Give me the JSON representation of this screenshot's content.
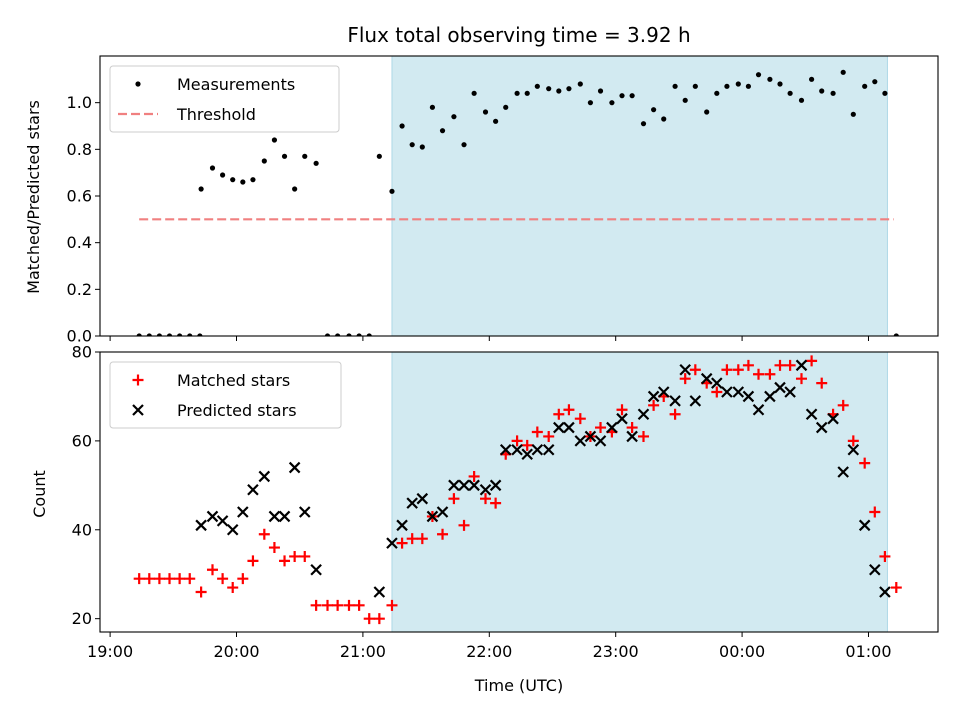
{
  "figure": {
    "title": "Flux total observing time = 3.92 h",
    "xlabel": "Time (UTC)",
    "xticks": [
      "19:00",
      "20:00",
      "21:00",
      "22:00",
      "23:00",
      "00:00",
      "01:00"
    ]
  },
  "colors": {
    "shade": "#add8e6",
    "measurements": "#000000",
    "threshold": "#f08080",
    "matched": "#ff0000",
    "predicted": "#000000"
  },
  "chart_data": [
    {
      "type": "scatter",
      "ylabel": "Matched/Predicted stars",
      "xunit": "hours since 19:00 UTC",
      "xlim": [
        -0.08,
        6.55
      ],
      "ylim": [
        0,
        1.2
      ],
      "yticks": [
        "0.0",
        "0.2",
        "0.4",
        "0.6",
        "0.8",
        "1.0"
      ],
      "shaded_region": [
        2.23,
        6.15
      ],
      "legend": {
        "position": "top-left",
        "entries": [
          "Measurements",
          "Threshold"
        ]
      },
      "threshold": {
        "name": "Threshold",
        "y": 0.5,
        "x_range": [
          0.23,
          6.2
        ]
      },
      "series": [
        {
          "name": "Measurements",
          "x": [
            0.23,
            0.31,
            0.39,
            0.47,
            0.55,
            0.63,
            0.71,
            0.72,
            0.81,
            0.89,
            0.97,
            1.05,
            1.13,
            1.22,
            1.3,
            1.38,
            1.46,
            1.54,
            1.63,
            1.72,
            1.8,
            1.89,
            1.97,
            2.05,
            2.13,
            2.23,
            2.31,
            2.39,
            2.47,
            2.55,
            2.63,
            2.72,
            2.8,
            2.88,
            2.97,
            3.05,
            3.13,
            3.22,
            3.3,
            3.38,
            3.47,
            3.55,
            3.63,
            3.72,
            3.8,
            3.88,
            3.97,
            4.05,
            4.13,
            4.22,
            4.3,
            4.38,
            4.47,
            4.55,
            4.63,
            4.72,
            4.8,
            4.88,
            4.97,
            5.05,
            5.13,
            5.22,
            5.3,
            5.38,
            5.47,
            5.55,
            5.63,
            5.72,
            5.8,
            5.88,
            5.97,
            6.05,
            6.13,
            6.22
          ],
          "y": [
            0,
            0,
            0,
            0,
            0,
            0,
            0,
            0.63,
            0.72,
            0.69,
            0.67,
            0.66,
            0.67,
            0.75,
            0.84,
            0.77,
            0.63,
            0.77,
            0.74,
            0,
            0,
            0,
            0,
            0,
            0.77,
            0.62,
            0.9,
            0.82,
            0.81,
            0.98,
            0.88,
            0.94,
            0.82,
            1.04,
            0.96,
            0.92,
            0.98,
            1.04,
            1.04,
            1.07,
            1.06,
            1.05,
            1.06,
            1.08,
            1.0,
            1.05,
            1.0,
            1.03,
            1.03,
            0.91,
            0.97,
            0.93,
            1.07,
            1.01,
            1.07,
            0.96,
            1.04,
            1.07,
            1.08,
            1.07,
            1.12,
            1.1,
            1.08,
            1.04,
            1.01,
            1.1,
            1.05,
            1.04,
            1.13,
            0.95,
            1.07,
            1.09,
            1.04,
            0
          ]
        }
      ]
    },
    {
      "type": "scatter",
      "ylabel": "Count",
      "xunit": "hours since 19:00 UTC",
      "xlim": [
        -0.08,
        6.55
      ],
      "ylim": [
        17,
        80
      ],
      "yticks": [
        "20",
        "40",
        "60",
        "80"
      ],
      "shaded_region": [
        2.23,
        6.15
      ],
      "legend": {
        "position": "top-left",
        "entries": [
          "Matched stars",
          "Predicted stars"
        ]
      },
      "series": [
        {
          "name": "Matched stars",
          "marker": "plus",
          "x": [
            0.23,
            0.31,
            0.39,
            0.47,
            0.55,
            0.63,
            0.72,
            0.81,
            0.89,
            0.97,
            1.05,
            1.13,
            1.22,
            1.3,
            1.38,
            1.46,
            1.54,
            1.63,
            1.72,
            1.8,
            1.89,
            1.97,
            2.05,
            2.13,
            2.23,
            2.31,
            2.39,
            2.47,
            2.55,
            2.63,
            2.72,
            2.8,
            2.88,
            2.97,
            3.05,
            3.13,
            3.22,
            3.3,
            3.38,
            3.47,
            3.55,
            3.63,
            3.72,
            3.8,
            3.88,
            3.97,
            4.05,
            4.13,
            4.22,
            4.3,
            4.38,
            4.47,
            4.55,
            4.63,
            4.72,
            4.8,
            4.88,
            4.97,
            5.05,
            5.13,
            5.22,
            5.3,
            5.38,
            5.47,
            5.55,
            5.63,
            5.72,
            5.8,
            5.88,
            5.97,
            6.05,
            6.13,
            6.22
          ],
          "y": [
            29,
            29,
            29,
            29,
            29,
            29,
            26,
            31,
            29,
            27,
            29,
            33,
            39,
            36,
            33,
            34,
            34,
            23,
            23,
            23,
            23,
            23,
            20,
            20,
            23,
            37,
            38,
            38,
            43,
            39,
            47,
            41,
            52,
            47,
            46,
            57,
            60,
            59,
            62,
            61,
            66,
            67,
            65,
            61,
            63,
            62,
            67,
            63,
            61,
            68,
            70,
            66,
            74,
            76,
            73,
            71,
            76,
            76,
            77,
            75,
            75,
            77,
            77,
            74,
            78,
            73,
            66,
            68,
            60,
            55,
            44,
            34,
            27
          ]
        },
        {
          "name": "Predicted stars",
          "marker": "x",
          "x": [
            0.72,
            0.81,
            0.89,
            0.97,
            1.05,
            1.13,
            1.22,
            1.3,
            1.38,
            1.46,
            1.54,
            1.63,
            2.13,
            2.23,
            2.31,
            2.39,
            2.47,
            2.55,
            2.63,
            2.72,
            2.8,
            2.88,
            2.97,
            3.05,
            3.13,
            3.22,
            3.3,
            3.38,
            3.47,
            3.55,
            3.63,
            3.72,
            3.8,
            3.88,
            3.97,
            4.05,
            4.13,
            4.22,
            4.3,
            4.38,
            4.47,
            4.55,
            4.63,
            4.72,
            4.8,
            4.88,
            4.97,
            5.05,
            5.13,
            5.22,
            5.3,
            5.38,
            5.47,
            5.55,
            5.63,
            5.72,
            5.8,
            5.88,
            5.97,
            6.05,
            6.13
          ],
          "y": [
            41,
            43,
            42,
            40,
            44,
            49,
            52,
            43,
            43,
            54,
            44,
            31,
            26,
            37,
            41,
            46,
            47,
            43,
            44,
            50,
            50,
            50,
            49,
            50,
            58,
            58,
            57,
            58,
            58,
            63,
            63,
            60,
            61,
            60,
            63,
            65,
            61,
            66,
            70,
            71,
            69,
            76,
            69,
            74,
            73,
            71,
            71,
            70,
            67,
            70,
            72,
            71,
            77,
            66,
            63,
            65,
            53,
            58,
            41,
            31,
            26
          ]
        }
      ]
    }
  ]
}
